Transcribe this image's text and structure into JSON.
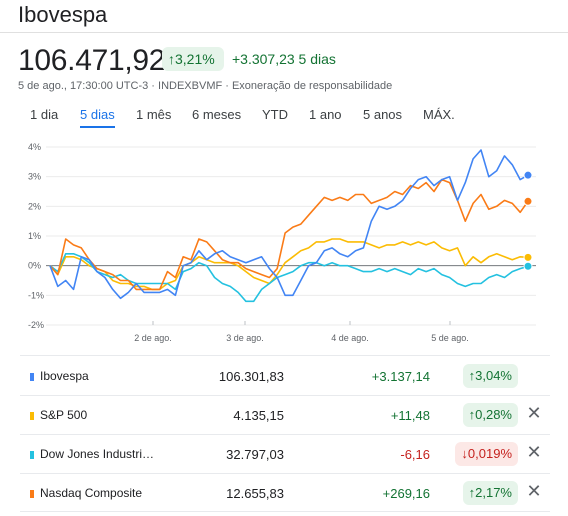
{
  "header": {
    "title": "Ibovespa",
    "price": "106.471,92",
    "pct_change": "↑3,21%",
    "abs_change": "+3.307,23 5 dias",
    "meta": "5 de ago., 17:30:00 UTC-3 · INDEXBVMF · Exoneração de responsabilidade"
  },
  "tabs": [
    "1 dia",
    "5 dias",
    "1 mês",
    "6 meses",
    "YTD",
    "1 ano",
    "5 anos",
    "MÁX."
  ],
  "active_tab": "5 dias",
  "colors": {
    "ibovespa": "#4285f4",
    "sp500": "#fbbc04",
    "dowjones": "#24c1e0",
    "nasdaq": "#fa7b17",
    "positive": "#137333",
    "negative": "#c5221f"
  },
  "chart_data": {
    "type": "line",
    "y_ticks": [
      "4%",
      "3%",
      "2%",
      "1%",
      "0%",
      "-1%",
      "-2%"
    ],
    "ylim": [
      -2,
      4
    ],
    "x_ticks": [
      "2 de ago.",
      "3 de ago.",
      "4 de ago.",
      "5 de ago."
    ],
    "series": [
      {
        "name": "Ibovespa",
        "color": "#4285f4",
        "values": [
          0.0,
          -0.7,
          -0.5,
          -0.8,
          0.3,
          0.2,
          -0.2,
          -0.4,
          -0.8,
          -1.1,
          -0.9,
          -0.6,
          -0.9,
          -0.9,
          -0.9,
          -0.8,
          -1.0,
          0.0,
          0.1,
          0.5,
          0.2,
          0.4,
          0.5,
          0.3,
          0.2,
          0.1,
          0.2,
          0.3,
          -0.1,
          -0.4,
          -1.0,
          -1.0,
          -0.5,
          0.0,
          0.1,
          0.5,
          0.6,
          0.4,
          0.3,
          0.5,
          0.6,
          1.5,
          2.0,
          1.9,
          2.0,
          2.2,
          2.6,
          2.9,
          3.0,
          2.7,
          2.9,
          3.0,
          2.2,
          2.8,
          3.6,
          3.9,
          3.0,
          3.2,
          3.7,
          3.4,
          2.9,
          3.05
        ]
      },
      {
        "name": "S&P 500",
        "color": "#fbbc04",
        "values": [
          0.0,
          -0.3,
          0.3,
          0.3,
          0.2,
          0.0,
          -0.1,
          -0.2,
          -0.5,
          -0.6,
          -0.6,
          -0.7,
          -0.7,
          -0.8,
          -0.8,
          -0.6,
          -0.5,
          0.0,
          0.1,
          0.3,
          0.2,
          0.1,
          0.1,
          0.1,
          0.0,
          -0.2,
          -0.4,
          -0.5,
          -0.6,
          -0.3,
          0.1,
          0.3,
          0.5,
          0.6,
          0.8,
          0.8,
          0.9,
          0.9,
          0.8,
          0.8,
          0.8,
          0.7,
          0.6,
          0.7,
          0.7,
          0.8,
          0.7,
          0.8,
          0.7,
          0.8,
          0.6,
          0.5,
          0.6,
          0.0,
          0.3,
          0.1,
          0.3,
          0.4,
          0.3,
          0.2,
          0.3,
          0.28
        ]
      },
      {
        "name": "Dow Jones Industri…",
        "color": "#24c1e0",
        "values": [
          0.0,
          -0.2,
          0.4,
          0.4,
          0.3,
          0.1,
          -0.2,
          -0.3,
          -0.4,
          -0.3,
          -0.5,
          -0.6,
          -0.6,
          -0.6,
          -0.6,
          -0.6,
          -0.8,
          -0.2,
          -0.1,
          0.1,
          0.0,
          -0.4,
          -0.6,
          -0.7,
          -0.9,
          -1.2,
          -1.2,
          -0.8,
          -0.6,
          -0.4,
          -0.3,
          -0.2,
          0.0,
          0.1,
          0.1,
          0.0,
          0.1,
          0.0,
          0.0,
          -0.1,
          -0.2,
          -0.2,
          -0.1,
          -0.2,
          -0.1,
          -0.2,
          -0.3,
          -0.1,
          -0.2,
          -0.1,
          -0.3,
          -0.4,
          -0.6,
          -0.7,
          -0.6,
          -0.6,
          -0.4,
          -0.3,
          -0.4,
          -0.2,
          -0.1,
          -0.02
        ]
      },
      {
        "name": "Nasdaq Composite",
        "color": "#fa7b17",
        "values": [
          0.0,
          -0.3,
          0.9,
          0.7,
          0.6,
          0.2,
          -0.1,
          -0.2,
          -0.3,
          -0.5,
          -0.5,
          -0.8,
          -0.8,
          -0.8,
          -0.8,
          -0.2,
          -0.4,
          0.3,
          0.2,
          0.9,
          0.8,
          0.5,
          0.2,
          0.1,
          0.1,
          -0.1,
          -0.2,
          -0.3,
          -0.4,
          -0.1,
          1.1,
          1.3,
          1.4,
          1.7,
          2.0,
          2.3,
          2.2,
          2.3,
          2.2,
          2.4,
          2.4,
          2.1,
          2.2,
          2.3,
          2.5,
          2.4,
          2.7,
          2.6,
          2.8,
          2.5,
          2.9,
          2.8,
          2.2,
          1.5,
          2.1,
          2.4,
          1.9,
          2.0,
          2.2,
          2.1,
          1.8,
          2.17
        ]
      }
    ]
  },
  "rows": [
    {
      "name": "Ibovespa",
      "price": "106.301,83",
      "change": "+3.137,14",
      "pct": "↑3,04%",
      "direction": "up",
      "removable": false
    },
    {
      "name": "S&P 500",
      "price": "4.135,15",
      "change": "+11,48",
      "pct": "↑0,28%",
      "direction": "up",
      "removable": true
    },
    {
      "name": "Dow Jones Industri…",
      "price": "32.797,03",
      "change": "-6,16",
      "pct": "↓0,019%",
      "direction": "down",
      "removable": true
    },
    {
      "name": "Nasdaq Composite",
      "price": "12.655,83",
      "change": "+269,16",
      "pct": "↑2,17%",
      "direction": "up",
      "removable": true
    }
  ],
  "icons": {
    "remove": "close-icon"
  }
}
